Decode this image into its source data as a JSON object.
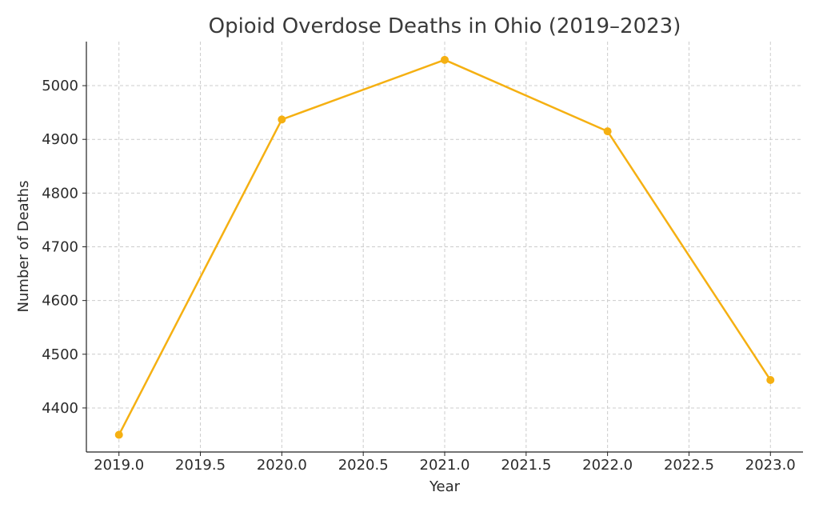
{
  "chart_data": {
    "type": "line",
    "title": "Opioid Overdose Deaths in Ohio (2019–2023)",
    "xlabel": "Year",
    "ylabel": "Number of Deaths",
    "xlim": [
      2018.8,
      2023.2
    ],
    "ylim": [
      4318,
      5082
    ],
    "x_ticks": [
      2019.0,
      2019.5,
      2020.0,
      2020.5,
      2021.0,
      2021.5,
      2022.0,
      2022.5,
      2023.0
    ],
    "x_tick_labels": [
      "2019.0",
      "2019.5",
      "2020.0",
      "2020.5",
      "2021.0",
      "2021.5",
      "2022.0",
      "2022.5",
      "2023.0"
    ],
    "y_ticks": [
      4400,
      4500,
      4600,
      4700,
      4800,
      4900,
      5000
    ],
    "y_tick_labels": [
      "4400",
      "4500",
      "4600",
      "4700",
      "4800",
      "4900",
      "5000"
    ],
    "grid": true,
    "series": [
      {
        "name": "Opioid Overdose Deaths",
        "color": "#f5b012",
        "x": [
          2019,
          2020,
          2021,
          2022,
          2023
        ],
        "values": [
          4350,
          4937,
          5048,
          4915,
          4452
        ]
      }
    ]
  }
}
